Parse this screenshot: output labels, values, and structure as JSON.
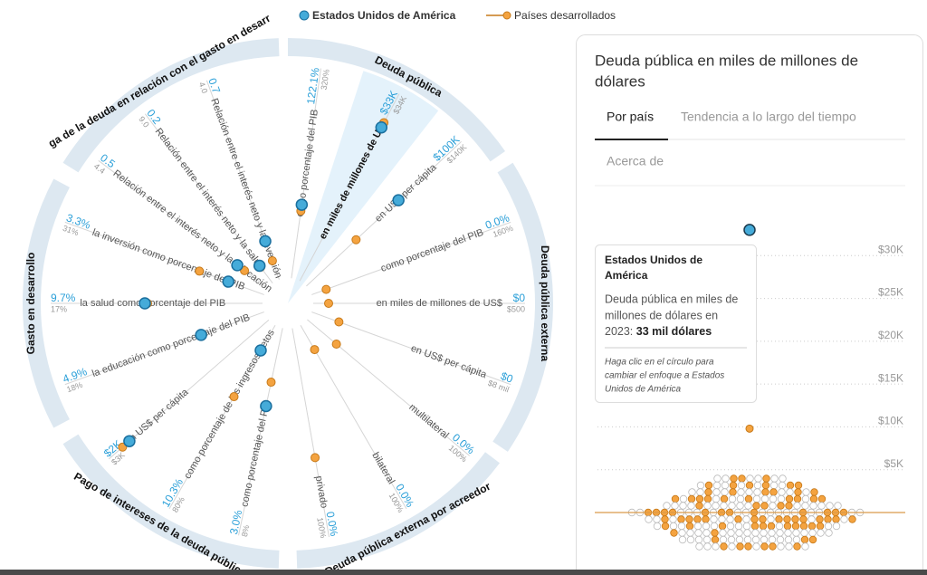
{
  "legend_title": null,
  "radial": {
    "groups": [
      {
        "name": "Deuda pública",
        "spokes": [
          {
            "label": "como porcentaje del PIB",
            "us": "122.1%",
            "developed": "320%"
          },
          {
            "label": "en miles de millones de US$",
            "us": "$33K",
            "developed": "$34K"
          },
          {
            "label": "en US$ per cápita",
            "us": "$100K",
            "developed": "$140K"
          }
        ]
      },
      {
        "name": "Deuda pública externa",
        "spokes": [
          {
            "label": "como porcentaje del PIB",
            "us": "0.0%",
            "developed": "160%"
          },
          {
            "label": "en miles de millones de US$",
            "us": "$0",
            "developed": "$500"
          },
          {
            "label": "en US$ per cápita",
            "us": "$0",
            "developed": "$8 mil"
          }
        ]
      },
      {
        "name": "Deuda pública externa por acreedor",
        "spokes": [
          {
            "label": "multilateral",
            "us": "0.0%",
            "developed": "100%"
          },
          {
            "label": "bilateral",
            "us": "0.0%",
            "developed": "100%"
          },
          {
            "label": "privado",
            "us": "0.0%",
            "developed": "100%"
          }
        ]
      },
      {
        "name": "Pago de intereses de la deuda pública",
        "spokes": [
          {
            "label": "como porcentaje del PIB",
            "us": "3.0%",
            "developed": "8%"
          },
          {
            "label": "como porcentaje de los ingresos netos",
            "us": "10.3%",
            "developed": "80%"
          },
          {
            "label": "en US$ per cápita",
            "us": "$2K",
            "developed": "$3K"
          }
        ]
      },
      {
        "name": "Gasto en desarrollo",
        "spokes": [
          {
            "label": "la educación como porcentaje del PIB",
            "us": "4.9%",
            "developed": "18%"
          },
          {
            "label": "la salud como porcentaje del PIB",
            "us": "9.7%",
            "developed": "17%"
          },
          {
            "label": "la inversión como porcentaje del PIB",
            "us": "3.3%",
            "developed": "31%"
          }
        ]
      },
      {
        "name": "ga de la deuda en relación con el gasto en desarr",
        "spokes": [
          {
            "label": "Relación entre el interés neto y la educación",
            "us": "0.5",
            "developed": "4.4"
          },
          {
            "label": "Relación entre el interés neto y la salud",
            "us": "0.2",
            "developed": "9.0"
          },
          {
            "label": "Relación entre el interés neto y la inversión",
            "us": "0.7",
            "developed": "4.0"
          }
        ]
      }
    ]
  },
  "panel": {
    "title": [
      "Deuda pública en miles de millones de",
      "dólares"
    ],
    "tabs": [
      "Por país",
      "Tendencia a lo largo del tiempo"
    ],
    "about": "Acerca de",
    "tooltip": {
      "country": [
        "Estados Unidos de",
        "América"
      ],
      "text": [
        "Deuda pública en miles de",
        "millones de dólares en"
      ],
      "year_prefix": "2023: ",
      "amount": "33 mil dólares",
      "hint": [
        "Haga clic en el círculo para",
        "cambiar el enfoque a Estados",
        "Unidos de América"
      ]
    }
  },
  "chart_data": {
    "type": "beeswarm",
    "series": [
      {
        "name": "Estados Unidos de América",
        "color": "#45abd9",
        "values": [
          33000
        ]
      },
      {
        "name": "Países desarrollados",
        "color": "#f4a340",
        "values": [
          9800
        ]
      }
    ],
    "ylim": [
      0,
      35000
    ],
    "yticks": [
      {
        "value": 5000,
        "label": "$5K"
      },
      {
        "value": 10000,
        "label": "$10K"
      },
      {
        "value": 15000,
        "label": "$15K"
      },
      {
        "value": 20000,
        "label": "$20K"
      },
      {
        "value": 25000,
        "label": "$25K"
      },
      {
        "value": 30000,
        "label": "$30K"
      }
    ],
    "grid": true
  }
}
